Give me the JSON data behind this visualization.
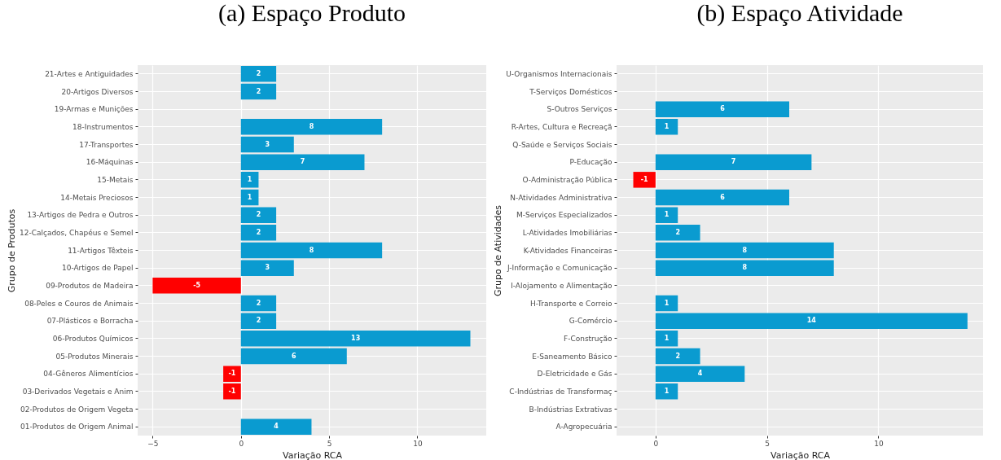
{
  "chart_data": [
    {
      "type": "bar",
      "orientation": "horizontal",
      "title": "(a) Espaço Produto",
      "xlabel": "Variação RCA",
      "ylabel": "Grupo de Produtos",
      "categories": [
        "21-Artes e Antiguidades",
        "20-Artigos Diversos",
        "19-Armas e Munições",
        "18-Instrumentos",
        "17-Transportes",
        "16-Máquinas",
        "15-Metais",
        "14-Metais Preciosos",
        "13-Artigos de Pedra e Outros",
        "12-Calçados, Chapéus e Semel",
        "11-Artigos Têxteis",
        "10-Artigos de Papel",
        "09-Produtos de Madeira",
        "08-Peles e Couros de Animais",
        "07-Plásticos e Borracha",
        "06-Produtos Químicos",
        "05-Produtos Minerais",
        "04-Gêneros Alimentícios",
        "03-Derivados Vegetais e Anim",
        "02-Produtos de Origem Vegeta",
        "01-Produtos de Origem Animal"
      ],
      "values": [
        2,
        2,
        0,
        8,
        3,
        7,
        1,
        1,
        2,
        2,
        8,
        3,
        -5,
        2,
        2,
        13,
        6,
        -1,
        -1,
        0,
        4
      ],
      "colors": [
        "#0a9bd0",
        "#0a9bd0",
        "#0a9bd0",
        "#0a9bd0",
        "#0a9bd0",
        "#0a9bd0",
        "#0a9bd0",
        "#0a9bd0",
        "#0a9bd0",
        "#0a9bd0",
        "#0a9bd0",
        "#0a9bd0",
        "#ff0000",
        "#0a9bd0",
        "#0a9bd0",
        "#0a9bd0",
        "#0a9bd0",
        "#ff0000",
        "#ff0000",
        "#0a9bd0",
        "#0a9bd0"
      ],
      "value_labels": [
        "2",
        "2",
        null,
        "8",
        "3",
        "7",
        "1",
        "1",
        "2",
        "2",
        "8",
        "3",
        "-5",
        "2",
        "2",
        "13",
        "6",
        "-1",
        "-1",
        null,
        "4"
      ],
      "xlim": [
        -5.85,
        13.9
      ],
      "xticks": [
        -5,
        0,
        5,
        10
      ],
      "grid": true
    },
    {
      "type": "bar",
      "orientation": "horizontal",
      "title": "(b) Espaço Atividade",
      "xlabel": "Variação RCA",
      "ylabel": "Grupo de Atividades",
      "categories": [
        "U-Organismos Internacionais",
        "T-Serviços Domésticos",
        "S-Outros Serviços",
        "R-Artes, Cultura e Recreaçã",
        "Q-Saúde e Serviços Sociais",
        "P-Educação",
        "O-Administração Pública",
        "N-Atividades Administrativa",
        "M-Serviços Especializados",
        "L-Atividades Imobiliárias",
        "K-Atividades Financeiras",
        "J-Informação e Comunicação",
        "I-Alojamento e Alimentação",
        "H-Transporte e Correio",
        "G-Comércio",
        "F-Construção",
        "E-Saneamento Básico",
        "D-Eletricidade e Gás",
        "C-Indústrias de Transformaç",
        "B-Indústrias Extrativas",
        "A-Agropecuária"
      ],
      "values": [
        0,
        0,
        6,
        1,
        0,
        7,
        -1,
        6,
        1,
        2,
        8,
        8,
        0,
        1,
        14,
        1,
        2,
        4,
        1,
        0,
        0
      ],
      "colors": [
        "#0a9bd0",
        "#0a9bd0",
        "#0a9bd0",
        "#0a9bd0",
        "#0a9bd0",
        "#0a9bd0",
        "#ff0000",
        "#0a9bd0",
        "#0a9bd0",
        "#0a9bd0",
        "#0a9bd0",
        "#0a9bd0",
        "#0a9bd0",
        "#0a9bd0",
        "#0a9bd0",
        "#0a9bd0",
        "#0a9bd0",
        "#0a9bd0",
        "#0a9bd0",
        "#0a9bd0",
        "#0a9bd0"
      ],
      "value_labels": [
        null,
        null,
        "6",
        "1",
        null,
        "7",
        "-1",
        "6",
        "1",
        "2",
        "8",
        "8",
        null,
        "1",
        "14",
        "1",
        "2",
        "4",
        "1",
        null,
        null
      ],
      "xlim": [
        -1.75,
        14.7
      ],
      "xticks": [
        0,
        5,
        10
      ],
      "grid": true
    }
  ]
}
